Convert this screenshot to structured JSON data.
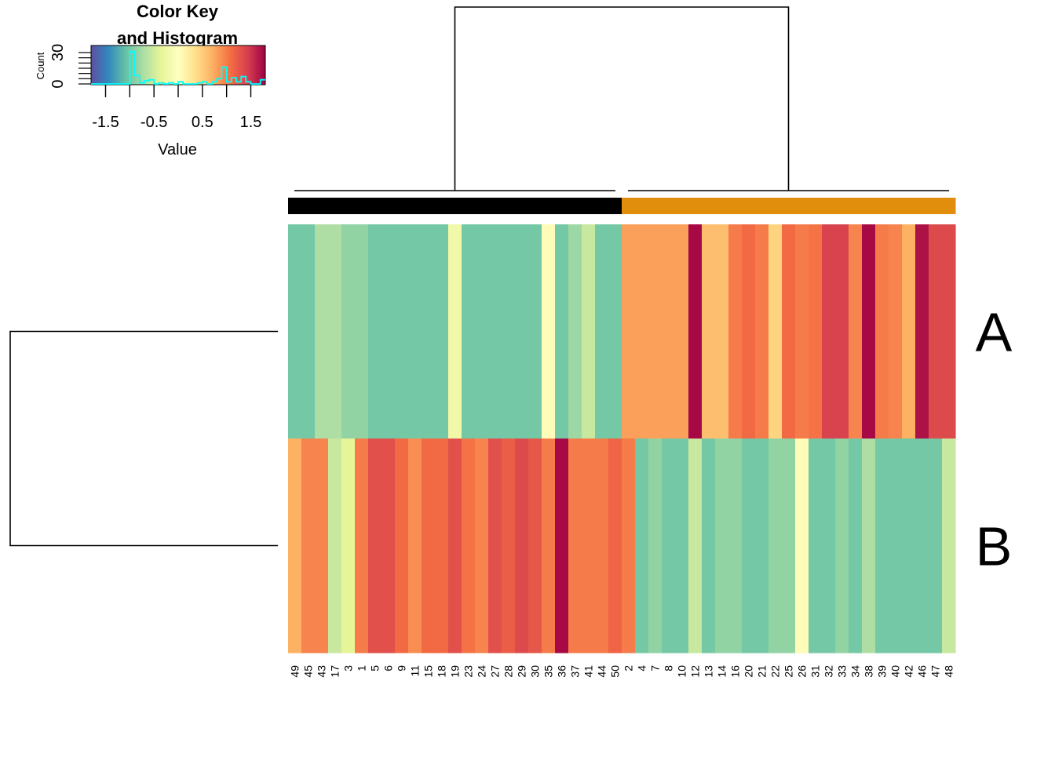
{
  "chart_data": {
    "type": "heatmap",
    "title": "",
    "columns": [
      "49",
      "45",
      "43",
      "17",
      "3",
      "1",
      "5",
      "6",
      "9",
      "11",
      "15",
      "18",
      "19",
      "23",
      "24",
      "27",
      "28",
      "29",
      "30",
      "35",
      "36",
      "37",
      "41",
      "44",
      "50",
      "2",
      "4",
      "7",
      "8",
      "10",
      "12",
      "13",
      "14",
      "16",
      "20",
      "21",
      "22",
      "25",
      "26",
      "31",
      "32",
      "33",
      "34",
      "38",
      "39",
      "40",
      "42",
      "46",
      "47",
      "48"
    ],
    "rows": [
      "A",
      "B"
    ],
    "values": [
      [
        -1.0,
        -1.0,
        -0.7,
        -0.7,
        -0.85,
        -0.85,
        -1.0,
        -1.0,
        -1.0,
        -1.0,
        -1.0,
        -1.0,
        -0.2,
        -1.0,
        -1.0,
        -1.0,
        -1.0,
        -1.0,
        -1.0,
        0.05,
        -1.0,
        -0.8,
        -0.55,
        -1.0,
        -1.0,
        0.8,
        0.8,
        0.8,
        0.8,
        0.8,
        1.75,
        0.6,
        0.6,
        1.0,
        1.1,
        1.0,
        0.45,
        1.1,
        1.0,
        1.05,
        1.4,
        1.4,
        0.95,
        1.75,
        1.0,
        0.95,
        0.7,
        1.7,
        1.35,
        1.35
      ],
      [
        0.7,
        0.95,
        0.95,
        -0.55,
        -0.35,
        1.0,
        1.3,
        1.3,
        1.1,
        0.9,
        1.1,
        1.1,
        1.3,
        1.05,
        0.95,
        1.3,
        1.2,
        1.35,
        1.25,
        1.0,
        1.75,
        1.0,
        1.0,
        1.0,
        1.15,
        1.0,
        -1.0,
        -0.85,
        -1.0,
        -1.0,
        -0.55,
        -1.0,
        -0.85,
        -0.85,
        -1.0,
        -1.0,
        -0.85,
        -0.85,
        0.05,
        -1.0,
        -1.0,
        -0.85,
        -1.0,
        -0.7,
        -1.0,
        -1.0,
        -1.0,
        -1.0,
        -1.0,
        -0.55
      ]
    ],
    "column_groups": [
      {
        "color": "#000000",
        "count": 25
      },
      {
        "color": "#E08E0B",
        "count": 25
      }
    ],
    "color_key": {
      "title_line1": "Color Key",
      "title_line2": "and Histogram",
      "xlabel": "Value",
      "ylabel": "Count",
      "x_ticks": [
        "-1.5",
        "-0.5",
        "0.5",
        "1.5"
      ],
      "y_ticks": [
        "0",
        "30"
      ],
      "range": [
        -1.8,
        1.8
      ],
      "palette": [
        "#5E4FA2",
        "#3288BD",
        "#66C2A5",
        "#ABDDA4",
        "#E6F598",
        "#FFFFBF",
        "#FEE08B",
        "#FDAE61",
        "#F46D43",
        "#D53E4F",
        "#9E0142"
      ],
      "histogram_color": "#00FFFF"
    }
  }
}
